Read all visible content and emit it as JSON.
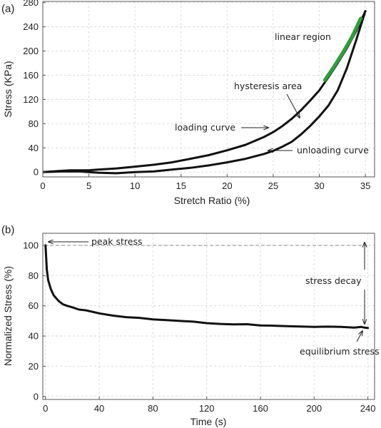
{
  "chart_data": [
    {
      "type": "line",
      "panel_label": "(a)",
      "xlabel": "Stretch Ratio (%)",
      "ylabel": "Stress (KPa)",
      "xlim": [
        0,
        36
      ],
      "ylim": [
        -8,
        282
      ],
      "xticks": [
        0,
        5,
        10,
        15,
        20,
        25,
        30,
        35
      ],
      "yticks": [
        0,
        40,
        80,
        120,
        160,
        200,
        240,
        280
      ],
      "grid": true,
      "series": [
        {
          "color": "#111111",
          "x": [
            0,
            1,
            2,
            3,
            4,
            5,
            6,
            8,
            10,
            12,
            14,
            16,
            18,
            20,
            22,
            24,
            25,
            26,
            27,
            28,
            29,
            30,
            31,
            32,
            33,
            34,
            35
          ],
          "y": [
            0,
            1,
            2,
            3,
            3,
            3,
            4,
            6,
            9,
            12,
            16,
            22,
            28,
            36,
            45,
            58,
            66,
            76,
            88,
            102,
            118,
            135,
            157,
            180,
            205,
            233,
            266
          ]
        },
        {
          "color": "#111111",
          "x": [
            35,
            34,
            33,
            32,
            31,
            30,
            29,
            28,
            27,
            26,
            25,
            24,
            22,
            20,
            18,
            16,
            14,
            12,
            10,
            8,
            6,
            5,
            4,
            2,
            0
          ],
          "y": [
            266,
            218,
            172,
            135,
            110,
            92,
            76,
            62,
            50,
            42,
            35,
            30,
            22,
            16,
            11,
            7,
            4,
            1,
            0,
            -2,
            -1,
            0,
            1,
            1,
            0
          ]
        },
        {
          "color": "#2e9e3c",
          "x": [
            30.6,
            31.5,
            32.5,
            33.5,
            34.5
          ],
          "y": [
            152,
            172,
            196,
            222,
            254
          ]
        }
      ],
      "annotations": {
        "linear": "linear region",
        "hysteresis": "hysteresis area",
        "loading": "loading curve",
        "unloading": "unloading curve"
      }
    },
    {
      "type": "line",
      "panel_label": "(b)",
      "xlabel": "Time (s)",
      "ylabel": "Normalized Stress (%)",
      "xlim": [
        -2,
        245
      ],
      "ylim": [
        -2,
        108
      ],
      "xticks": [
        0,
        40,
        80,
        120,
        160,
        200,
        240
      ],
      "yticks": [
        0,
        20,
        40,
        60,
        80,
        100
      ],
      "grid": true,
      "series": [
        {
          "color": "#111111",
          "x": [
            0,
            1,
            2,
            4,
            6,
            8,
            10,
            13,
            16,
            20,
            25,
            30,
            35,
            40,
            50,
            60,
            70,
            80,
            90,
            100,
            110,
            120,
            130,
            140,
            150,
            160,
            170,
            180,
            190,
            200,
            210,
            220,
            230,
            235,
            238,
            240
          ],
          "y": [
            100,
            84,
            77,
            71,
            67,
            65,
            63,
            61,
            60,
            59,
            57.5,
            57,
            56,
            55,
            53.5,
            52.5,
            52,
            51,
            50.5,
            50,
            49.5,
            48.5,
            48,
            47.7,
            47.8,
            47,
            46.8,
            46.5,
            46.3,
            46,
            46.2,
            46,
            45.6,
            46,
            45.5,
            45.3
          ]
        }
      ],
      "reference_line_y": 100,
      "annotations": {
        "peak": "peak stress",
        "decay": "stress decay",
        "equilibrium": "equilibrium stress"
      }
    }
  ]
}
